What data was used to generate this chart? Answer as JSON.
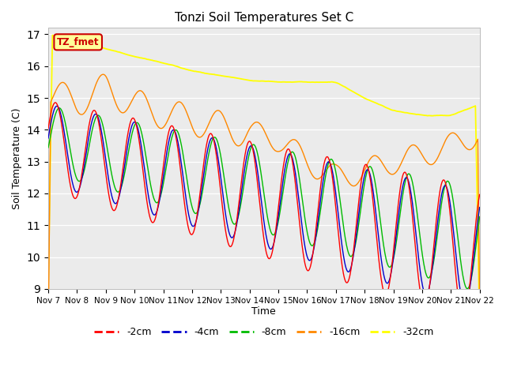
{
  "title": "Tonzi Soil Temperatures Set C",
  "ylabel": "Soil Temperature (C)",
  "xlabel": "Time",
  "ylim": [
    9.0,
    17.2
  ],
  "yticks": [
    9.0,
    10.0,
    11.0,
    12.0,
    13.0,
    14.0,
    15.0,
    16.0,
    17.0
  ],
  "bg_color": "#ebebeb",
  "fig_color": "#ffffff",
  "label_box_text": "TZ_fmet",
  "label_box_bg": "#ffff99",
  "label_box_edge": "#cc0000",
  "line_colors": {
    "-2cm": "#ff0000",
    "-4cm": "#0000cc",
    "-8cm": "#00bb00",
    "-16cm": "#ff8800",
    "-32cm": "#ffff00"
  },
  "line_lw": 1.0,
  "xtick_labels": [
    "Nov 7",
    "Nov 8",
    "Nov 9",
    "Nov 10",
    "Nov 11",
    "Nov 12",
    "Nov 13",
    "Nov 14",
    "Nov 15",
    "Nov 16",
    "Nov 17",
    "Nov 18",
    "Nov 19",
    "Nov 20",
    "Nov 21",
    "Nov 22"
  ],
  "n_points": 720
}
